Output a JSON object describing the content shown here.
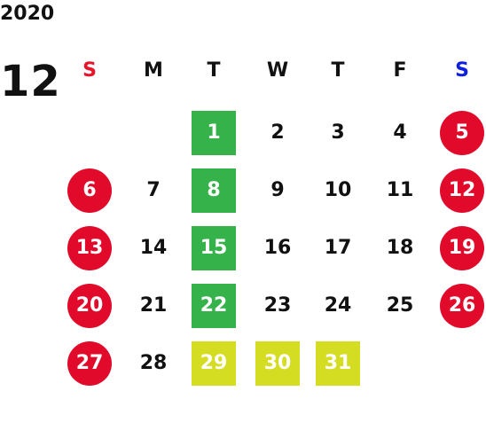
{
  "calendar": {
    "year": "2020",
    "month": "12",
    "weekdays": [
      {
        "label": "S",
        "color": "#e8142a"
      },
      {
        "label": "M",
        "color": "#111111"
      },
      {
        "label": "T",
        "color": "#111111"
      },
      {
        "label": "W",
        "color": "#111111"
      },
      {
        "label": "T",
        "color": "#111111"
      },
      {
        "label": "F",
        "color": "#111111"
      },
      {
        "label": "S",
        "color": "#1020e0"
      }
    ],
    "colors": {
      "holiday_red": "#e20a2b",
      "green": "#36b24a",
      "yellow_green": "#d5dd22",
      "text": "#111111"
    },
    "weeks": [
      [
        null,
        null,
        {
          "day": "1",
          "style": "green-square"
        },
        {
          "day": "2"
        },
        {
          "day": "3"
        },
        {
          "day": "4"
        },
        {
          "day": "5",
          "style": "red-circle"
        }
      ],
      [
        {
          "day": "6",
          "style": "red-circle"
        },
        {
          "day": "7"
        },
        {
          "day": "8",
          "style": "green-square"
        },
        {
          "day": "9"
        },
        {
          "day": "10"
        },
        {
          "day": "11"
        },
        {
          "day": "12",
          "style": "red-circle"
        }
      ],
      [
        {
          "day": "13",
          "style": "red-circle"
        },
        {
          "day": "14"
        },
        {
          "day": "15",
          "style": "green-square"
        },
        {
          "day": "16"
        },
        {
          "day": "17"
        },
        {
          "day": "18"
        },
        {
          "day": "19",
          "style": "red-circle"
        }
      ],
      [
        {
          "day": "20",
          "style": "red-circle"
        },
        {
          "day": "21"
        },
        {
          "day": "22",
          "style": "green-square"
        },
        {
          "day": "23"
        },
        {
          "day": "24"
        },
        {
          "day": "25"
        },
        {
          "day": "26",
          "style": "red-circle"
        }
      ],
      [
        {
          "day": "27",
          "style": "red-circle"
        },
        {
          "day": "28"
        },
        {
          "day": "29",
          "style": "yellow-square"
        },
        {
          "day": "30",
          "style": "yellow-square"
        },
        {
          "day": "31",
          "style": "yellow-square"
        },
        null,
        null
      ]
    ]
  }
}
